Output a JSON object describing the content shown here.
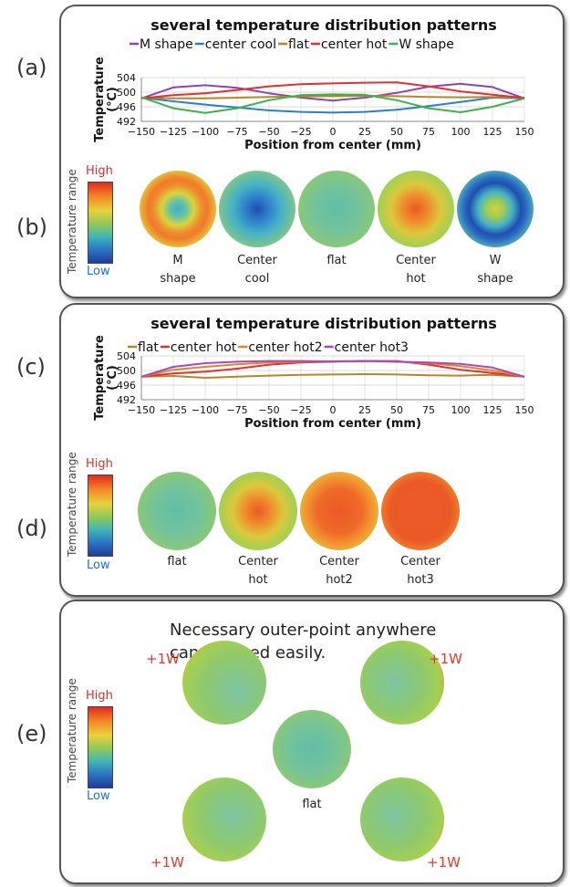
{
  "panel_labels": {
    "a": "(a)",
    "b": "(b)",
    "c": "(c)",
    "d": "(d)",
    "e": "(e)"
  },
  "scale": {
    "high": "High",
    "low": "Low",
    "title": "Temperature range"
  },
  "section_b": {
    "labels": [
      [
        "M",
        "shape"
      ],
      [
        "Center",
        "cool"
      ],
      [
        "flat",
        ""
      ],
      [
        "Center",
        "hot"
      ],
      [
        "W",
        "shape"
      ]
    ]
  },
  "section_d": {
    "labels": [
      [
        "flat",
        ""
      ],
      [
        "Center",
        "hot"
      ],
      [
        "Center",
        "hot2"
      ],
      [
        "Center",
        "hot3"
      ]
    ]
  },
  "section_e": {
    "note_line1": "Necessary outer-point anywhere",
    "note_line2": "can be fixed easily.",
    "center_label": "flat",
    "power_labels": [
      "+1W",
      "+1W",
      "+1W",
      "+1W"
    ]
  },
  "chart_data": [
    {
      "type": "line",
      "title": "several temperature distribution patterns",
      "xlabel": "Position from center (mm)",
      "ylabel": "Temperature (℃)",
      "xlim": [
        -150,
        150
      ],
      "ylim": [
        492,
        504
      ],
      "xticks": [
        -150,
        -125,
        -100,
        -75,
        -50,
        -25,
        0,
        25,
        50,
        75,
        100,
        125,
        150
      ],
      "yticks": [
        492,
        496,
        500,
        504
      ],
      "grid": true,
      "legend_position": "top",
      "x": [
        -150,
        -125,
        -100,
        -75,
        -50,
        -25,
        0,
        25,
        50,
        75,
        100,
        125,
        150
      ],
      "series": [
        {
          "name": "M shape",
          "color": "#8e44ad",
          "values": [
            498.3,
            501.3,
            501.9,
            501.2,
            499.7,
            498.5,
            497.7,
            498.5,
            499.8,
            501.5,
            502.3,
            501.4,
            498.3
          ]
        },
        {
          "name": "center cool",
          "color": "#2a7fc9",
          "values": [
            498.5,
            497.5,
            496.6,
            495.8,
            495.0,
            494.6,
            494.4,
            494.6,
            495.2,
            496.2,
            497.3,
            498.5,
            498.3
          ]
        },
        {
          "name": "flat",
          "color": "#b8862a",
          "values": [
            498.5,
            498.3,
            498.3,
            498.5,
            498.7,
            498.8,
            498.9,
            499.0,
            498.9,
            498.7,
            498.6,
            498.7,
            498.5
          ]
        },
        {
          "name": "center hot",
          "color": "#e03030",
          "values": [
            498.3,
            499.2,
            499.7,
            500.6,
            501.6,
            502.2,
            502.4,
            502.6,
            502.7,
            501.6,
            500.2,
            499.3,
            498.4
          ]
        },
        {
          "name": "W shape",
          "color": "#3bb24a",
          "values": [
            498.6,
            495.6,
            494.3,
            495.6,
            497.8,
            499.2,
            499.4,
            499.3,
            497.8,
            495.6,
            494.5,
            496.0,
            498.3
          ]
        }
      ]
    },
    {
      "type": "line",
      "title": "several temperature distribution patterns",
      "xlabel": "Position from center (mm)",
      "ylabel": "Temperature (℃)",
      "xlim": [
        -150,
        150
      ],
      "ylim": [
        492,
        504
      ],
      "xticks": [
        -150,
        -125,
        -100,
        -75,
        -50,
        -25,
        0,
        25,
        50,
        75,
        100,
        125,
        150
      ],
      "yticks": [
        492,
        496,
        500,
        504
      ],
      "grid": true,
      "legend_position": "top",
      "x": [
        -150,
        -125,
        -100,
        -75,
        -50,
        -25,
        0,
        25,
        50,
        75,
        100,
        125,
        150
      ],
      "series": [
        {
          "name": "flat",
          "color": "#b8862a",
          "values": [
            498.3,
            498.5,
            498.0,
            498.3,
            498.6,
            498.8,
            498.9,
            499.0,
            498.9,
            498.7,
            498.6,
            498.8,
            498.3
          ]
        },
        {
          "name": "center hot",
          "color": "#e03030",
          "values": [
            498.3,
            499.2,
            499.7,
            500.5,
            501.6,
            502.2,
            502.4,
            502.6,
            502.6,
            501.6,
            500.2,
            499.3,
            498.3
          ]
        },
        {
          "name": "center hot2",
          "color": "#d9862e",
          "values": [
            498.3,
            500.2,
            501.0,
            501.7,
            502.2,
            502.4,
            502.5,
            502.6,
            502.4,
            502.0,
            501.2,
            500.0,
            498.3
          ]
        },
        {
          "name": "center hot3",
          "color": "#a44bb8",
          "values": [
            498.3,
            501.0,
            502.0,
            502.4,
            502.6,
            502.6,
            502.5,
            502.6,
            502.4,
            502.2,
            501.8,
            500.8,
            498.3
          ]
        }
      ]
    }
  ]
}
